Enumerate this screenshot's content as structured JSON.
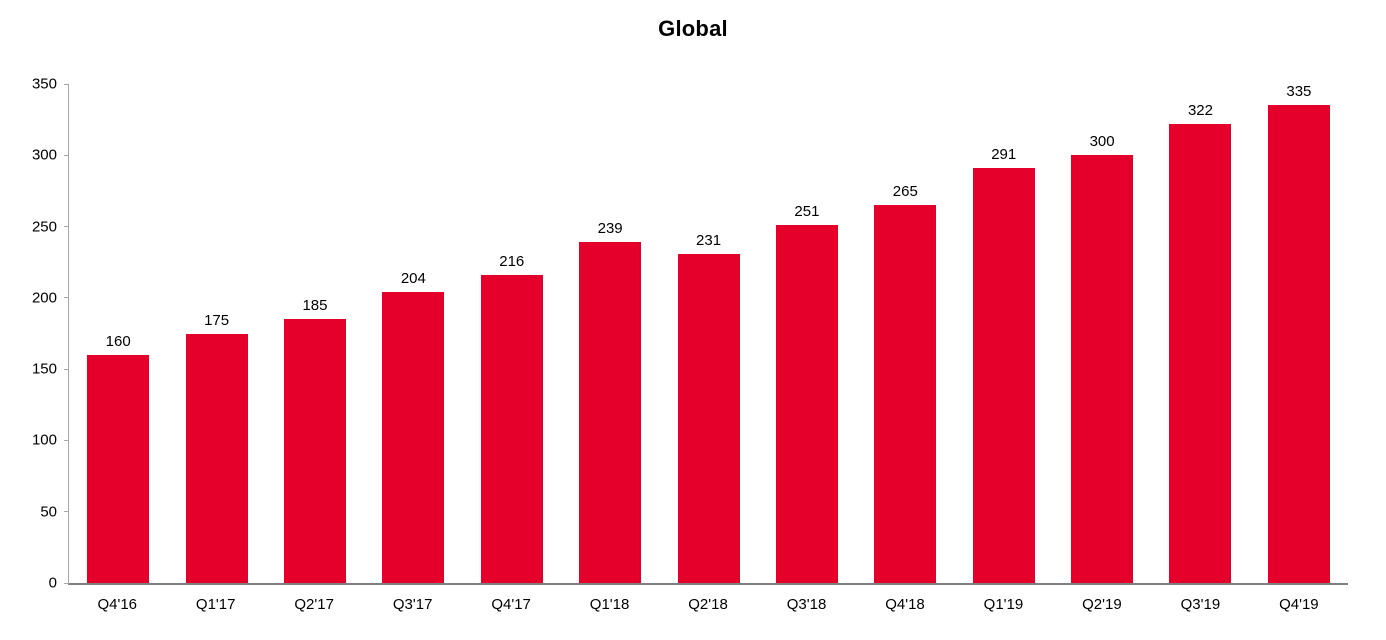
{
  "chart_data": {
    "type": "bar",
    "title": "Global",
    "categories": [
      "Q4'16",
      "Q1'17",
      "Q2'17",
      "Q3'17",
      "Q4'17",
      "Q1'18",
      "Q2'18",
      "Q3'18",
      "Q4'18",
      "Q1'19",
      "Q2'19",
      "Q3'19",
      "Q4'19"
    ],
    "values": [
      160,
      175,
      185,
      204,
      216,
      239,
      231,
      251,
      265,
      291,
      300,
      322,
      335
    ],
    "xlabel": "",
    "ylabel": "",
    "ylim": [
      0,
      350
    ],
    "yticks": [
      0,
      50,
      100,
      150,
      200,
      250,
      300,
      350
    ],
    "grid": false,
    "legend": "none",
    "value_labels": true,
    "bar_color": "#e4002b",
    "axis_color": "#7f7f7f"
  }
}
